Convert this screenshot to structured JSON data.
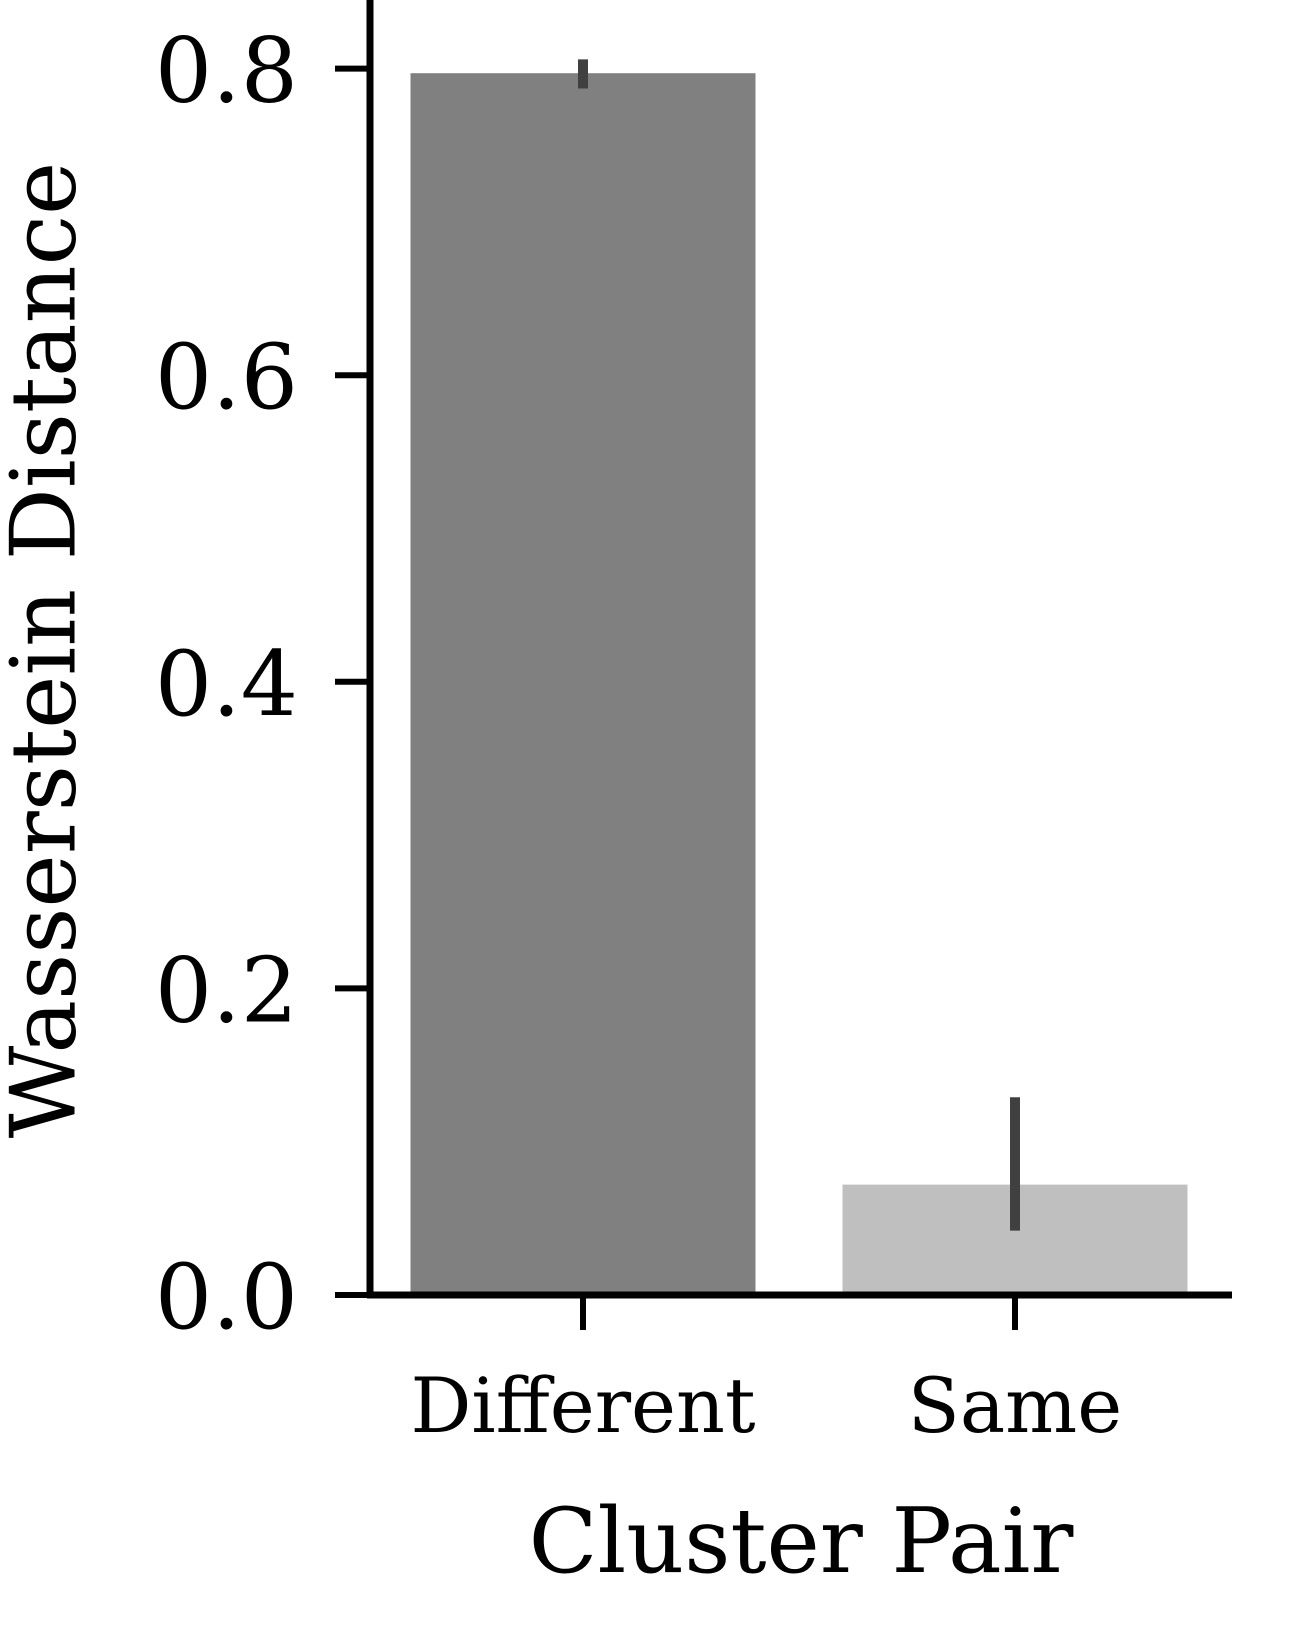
{
  "chart_data": {
    "type": "bar",
    "categories": [
      "Different",
      "Same"
    ],
    "values": [
      0.797,
      0.072
    ],
    "error_bars": [
      {
        "low": 0.787,
        "high": 0.806
      },
      {
        "low": 0.042,
        "high": 0.129
      }
    ],
    "xlabel": "Cluster Pair",
    "ylabel": "Wasserstein Distance",
    "ylim": [
      0,
      0.84
    ],
    "yticks": [
      "0.0",
      "0.2",
      "0.4",
      "0.6",
      "0.8"
    ],
    "ytick_values": [
      0.0,
      0.2,
      0.4,
      0.6,
      0.8
    ],
    "grid": false,
    "colors": {
      "bars": [
        "#808080",
        "#bfbfbf"
      ],
      "error_bar": "#404040",
      "axis": "#000000"
    }
  }
}
